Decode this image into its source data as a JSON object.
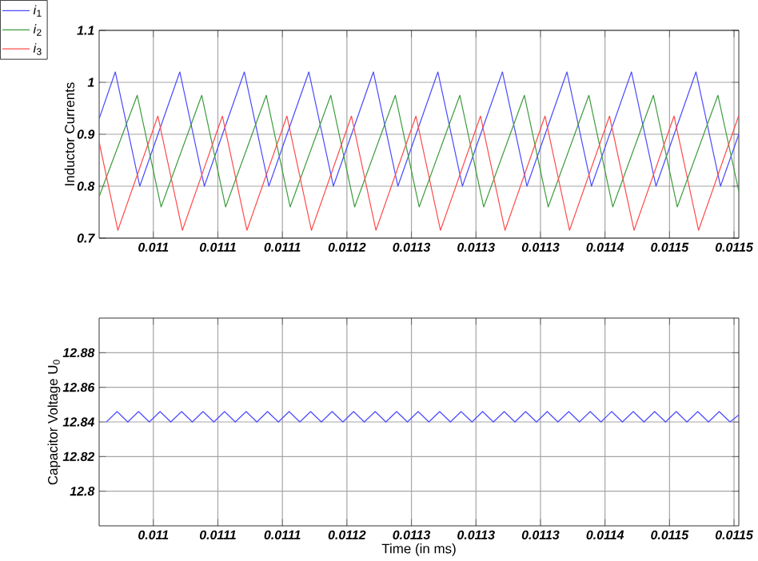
{
  "chart_data": [
    {
      "type": "line",
      "ylabel": "Inductor Currents",
      "xlim": [
        0.011008,
        0.0115037
      ],
      "ylim": [
        0.7,
        1.1
      ],
      "yticks": [
        0.7,
        0.8,
        0.9,
        1,
        1.1
      ],
      "xticks": [
        {
          "value": 0.01105,
          "label": "0.011"
        },
        {
          "value": 0.0111,
          "label": "0.0111"
        },
        {
          "value": 0.01115,
          "label": "0.0111"
        },
        {
          "value": 0.0112,
          "label": "0.0112"
        },
        {
          "value": 0.01125,
          "label": "0.0113"
        },
        {
          "value": 0.0113,
          "label": "0.0113"
        },
        {
          "value": 0.01135,
          "label": "0.0113"
        },
        {
          "value": 0.0114,
          "label": "0.0114"
        },
        {
          "value": 0.01145,
          "label": "0.0115"
        },
        {
          "value": 0.0115,
          "label": "0.0115"
        }
      ],
      "grid": true,
      "legend": "top left",
      "series": [
        {
          "name": "*i*$_{1}$",
          "color": "#4a4aff",
          "x": [
            0.011008,
            0.0110205,
            0.0110395,
            0.0110705,
            0.0110895,
            0.0111205,
            0.0111395,
            0.0111705,
            0.0111895,
            0.0112205,
            0.0112395,
            0.0112705,
            0.0112895,
            0.0113205,
            0.0113395,
            0.0113705,
            0.0113895,
            0.0114205,
            0.0114395,
            0.0114705,
            0.0114895,
            0.0115037
          ],
          "values": [
            0.93,
            1.02,
            0.8,
            1.02,
            0.8,
            1.02,
            0.8,
            1.02,
            0.8,
            1.02,
            0.8,
            1.02,
            0.8,
            1.02,
            0.8,
            1.02,
            0.8,
            1.02,
            0.8,
            1.02,
            0.8,
            0.9
          ]
        },
        {
          "name": "*i*$_{2}$",
          "color": "#3c9c3c",
          "x": [
            0.011008,
            0.0110375,
            0.011056,
            0.0110875,
            0.011106,
            0.0111375,
            0.011156,
            0.0111875,
            0.011206,
            0.0112375,
            0.011256,
            0.0112875,
            0.011306,
            0.0113375,
            0.011356,
            0.0113875,
            0.011406,
            0.0114375,
            0.011456,
            0.0114875,
            0.0115037
          ],
          "values": [
            0.78,
            0.975,
            0.76,
            0.975,
            0.76,
            0.975,
            0.76,
            0.975,
            0.76,
            0.975,
            0.76,
            0.975,
            0.76,
            0.975,
            0.76,
            0.975,
            0.76,
            0.975,
            0.76,
            0.975,
            0.79
          ]
        },
        {
          "name": "*i*$_{3}$",
          "color": "#ff4a4a",
          "x": [
            0.011008,
            0.0110225,
            0.0110535,
            0.0110725,
            0.0111035,
            0.0111225,
            0.0111535,
            0.0111725,
            0.0112035,
            0.0112225,
            0.0112535,
            0.0112725,
            0.0113035,
            0.0113225,
            0.0113535,
            0.0113725,
            0.0114035,
            0.0114225,
            0.0114535,
            0.0114725,
            0.0115035
          ],
          "values": [
            0.885,
            0.715,
            0.935,
            0.715,
            0.935,
            0.715,
            0.935,
            0.715,
            0.935,
            0.715,
            0.935,
            0.715,
            0.935,
            0.715,
            0.935,
            0.715,
            0.935,
            0.715,
            0.935,
            0.715,
            0.935
          ]
        }
      ]
    },
    {
      "type": "line",
      "ylabel": "Capacitor Voltage U$_{0}$",
      "xlabel": "Time (in ms)",
      "xlim": [
        0.011008,
        0.0115037
      ],
      "ylim": [
        12.78,
        12.9
      ],
      "yticks": [
        12.8,
        12.82,
        12.84,
        12.86,
        12.88
      ],
      "xticks": [
        {
          "value": 0.01105,
          "label": "0.011"
        },
        {
          "value": 0.0111,
          "label": "0.0111"
        },
        {
          "value": 0.01115,
          "label": "0.0111"
        },
        {
          "value": 0.0112,
          "label": "0.0112"
        },
        {
          "value": 0.01125,
          "label": "0.0113"
        },
        {
          "value": 0.0113,
          "label": "0.0113"
        },
        {
          "value": 0.01135,
          "label": "0.0113"
        },
        {
          "value": 0.0114,
          "label": "0.0114"
        },
        {
          "value": 0.01145,
          "label": "0.0115"
        },
        {
          "value": 0.0115,
          "label": "0.0115"
        }
      ],
      "grid": true,
      "series": [
        {
          "color": "#4a4aff",
          "x": [
            0.0110136,
            0.0110219,
            0.0110302,
            0.0110385,
            0.0110469,
            0.0110552,
            0.0110635,
            0.0110719,
            0.0110802,
            0.0110885,
            0.0110969,
            0.0111052,
            0.0111135,
            0.0111219,
            0.0111302,
            0.0111385,
            0.0111469,
            0.0111552,
            0.0111635,
            0.0111719,
            0.0111802,
            0.0111885,
            0.0111969,
            0.0112052,
            0.0112135,
            0.0112219,
            0.0112302,
            0.0112385,
            0.0112469,
            0.0112552,
            0.0112635,
            0.0112719,
            0.0112802,
            0.0112885,
            0.0112969,
            0.0113052,
            0.0113135,
            0.0113219,
            0.0113302,
            0.0113385,
            0.0113469,
            0.0113552,
            0.0113635,
            0.0113719,
            0.0113802,
            0.0113885,
            0.0113969,
            0.0114052,
            0.0114135,
            0.0114219,
            0.0114302,
            0.0114385,
            0.0114469,
            0.0114552,
            0.0114635,
            0.0114719,
            0.0114802,
            0.0114885,
            0.0114969,
            0.0115037
          ],
          "values": [
            12.84,
            12.846,
            12.84,
            12.846,
            12.84,
            12.846,
            12.84,
            12.846,
            12.84,
            12.846,
            12.84,
            12.846,
            12.84,
            12.846,
            12.84,
            12.846,
            12.84,
            12.846,
            12.84,
            12.846,
            12.84,
            12.846,
            12.84,
            12.846,
            12.84,
            12.846,
            12.84,
            12.846,
            12.84,
            12.846,
            12.84,
            12.846,
            12.84,
            12.846,
            12.84,
            12.846,
            12.84,
            12.846,
            12.84,
            12.846,
            12.84,
            12.846,
            12.84,
            12.846,
            12.84,
            12.846,
            12.84,
            12.846,
            12.84,
            12.846,
            12.84,
            12.846,
            12.84,
            12.846,
            12.84,
            12.846,
            12.84,
            12.846,
            12.84,
            12.844
          ]
        }
      ]
    }
  ]
}
